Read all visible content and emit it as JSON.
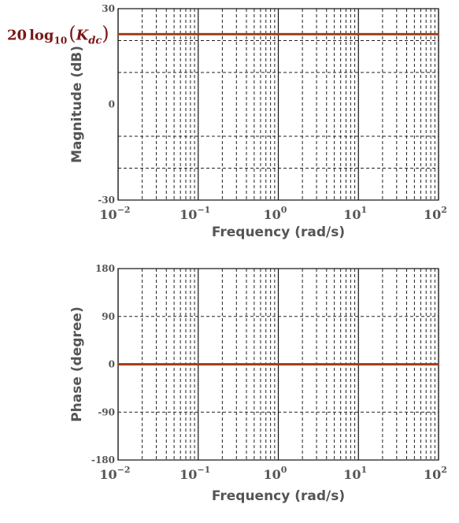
{
  "chart_data": [
    {
      "type": "line",
      "title": "",
      "xlabel": "Frequency  (rad/s)",
      "ylabel": "Magnitude (dB)",
      "x_scale": "log",
      "xlim": [
        0.01,
        100
      ],
      "ylim": [
        -30,
        30
      ],
      "x_ticks": [
        0.01,
        0.1,
        1,
        10,
        100
      ],
      "x_tick_labels": [
        {
          "base": "10",
          "exp": "−2"
        },
        {
          "base": "10",
          "exp": "−1"
        },
        {
          "base": "10",
          "exp": "0"
        },
        {
          "base": "10",
          "exp": "1"
        },
        {
          "base": "10",
          "exp": "2"
        }
      ],
      "y_ticks": [
        -30,
        0,
        30
      ],
      "y_tick_labels": [
        "-30",
        "0",
        "30"
      ],
      "y_grid": [
        -20,
        -10,
        10,
        20
      ],
      "grid": true,
      "series": [
        {
          "color": "#a0401a",
          "x": [
            0.01,
            100
          ],
          "y": [
            22,
            22
          ]
        }
      ],
      "annotation": {
        "prefix": "20",
        "log": "log",
        "sub": "10",
        "open": "(",
        "var": "K",
        "var_sub": "dc",
        "close": ")"
      }
    },
    {
      "type": "line",
      "title": "",
      "xlabel": "Frequency  (rad/s)",
      "ylabel": "Phase (degree)",
      "x_scale": "log",
      "xlim": [
        0.01,
        100
      ],
      "ylim": [
        -180,
        180
      ],
      "x_ticks": [
        0.01,
        0.1,
        1,
        10,
        100
      ],
      "x_tick_labels": [
        {
          "base": "10",
          "exp": "−2"
        },
        {
          "base": "10",
          "exp": "−1"
        },
        {
          "base": "10",
          "exp": "0"
        },
        {
          "base": "10",
          "exp": "1"
        },
        {
          "base": "10",
          "exp": "2"
        }
      ],
      "y_ticks": [
        -180,
        -90,
        0,
        90,
        180
      ],
      "y_tick_labels": [
        "-180",
        "-90",
        "0",
        "90",
        "180"
      ],
      "y_grid": [
        -90,
        90
      ],
      "zero_label_color": "#a0401a",
      "grid": true,
      "series": [
        {
          "color": "#a0401a",
          "x": [
            0.01,
            100
          ],
          "y": [
            0,
            0
          ]
        }
      ]
    }
  ]
}
